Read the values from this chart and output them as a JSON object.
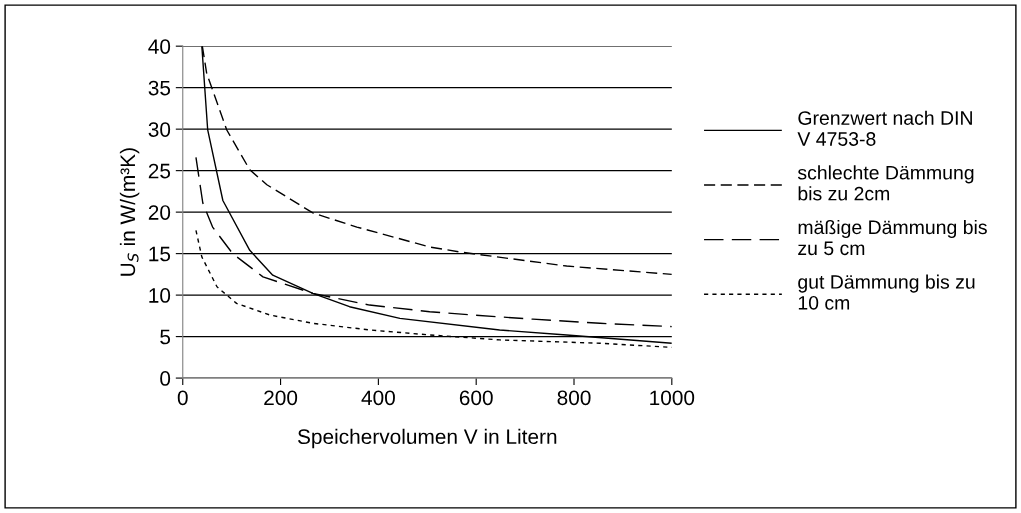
{
  "chart_data": {
    "type": "line",
    "xlabel": "Speichervolumen V in Litern",
    "ylabel": "U$_{S}$ in W/(m³K)",
    "xlim": [
      0,
      1000
    ],
    "xticks": [
      0,
      200,
      400,
      600,
      800,
      1000
    ],
    "ylim": [
      0,
      40
    ],
    "yticks": [
      0,
      5,
      10,
      15,
      20,
      25,
      30,
      35,
      40
    ],
    "grid": "y",
    "legend": "right",
    "marker": "none",
    "series": [
      {
        "name": "Grenzwert nach DIN V 4753-8",
        "color": "#000000",
        "line_style": "solid",
        "x": [
          39,
          51,
          82,
          137,
          184,
          266,
          341,
          444,
          648,
          785,
          1000
        ],
        "values": [
          40,
          29.9,
          21.4,
          15.4,
          12.4,
          10.2,
          8.6,
          7.2,
          5.8,
          5.2,
          4.2
        ]
      },
      {
        "name": "schlechte Dämmung bis zu 2cm",
        "color": "#000000",
        "line_style": "dashed",
        "x": [
          40,
          49,
          90,
          137,
          172,
          266,
          356,
          505,
          566,
          785,
          1000
        ],
        "values": [
          40,
          36.7,
          29.9,
          25.1,
          23.3,
          19.9,
          18.2,
          15.8,
          15.2,
          13.5,
          12.5
        ]
      },
      {
        "name": "mäßige Dämmung bis zu 5 cm",
        "color": "#000000",
        "line_style": "dashed",
        "x": [
          27,
          41,
          61,
          102,
          164,
          266,
          382,
          505,
          593,
          716,
          853,
          1000
        ],
        "values": [
          26.6,
          21.1,
          18.2,
          15.0,
          12.2,
          10.2,
          8.8,
          8.0,
          7.6,
          7.1,
          6.6,
          6.2
        ]
      },
      {
        "name": "gut Dämmung bis zu 10 cm",
        "color": "#000000",
        "line_style": "dotted",
        "x": [
          27,
          39,
          70,
          110,
          178,
          266,
          382,
          505,
          648,
          853,
          1000
        ],
        "values": [
          17.8,
          14.6,
          11.0,
          9.0,
          7.6,
          6.6,
          5.8,
          5.2,
          4.6,
          4.2,
          3.7
        ]
      }
    ]
  }
}
